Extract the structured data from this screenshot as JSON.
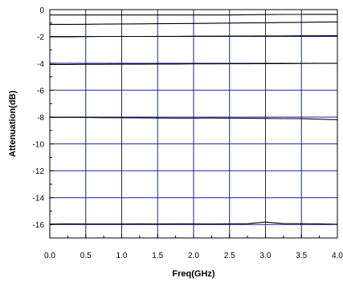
{
  "chart_data": {
    "type": "line",
    "title": "",
    "xlabel": "Freq(GHz)",
    "ylabel": "Attenuation(dB)",
    "xlim": [
      0,
      4.0
    ],
    "ylim": [
      -17,
      0
    ],
    "x_ticks": [
      0.0,
      0.5,
      1.0,
      1.5,
      2.0,
      2.5,
      3.0,
      3.5,
      4.0
    ],
    "x_tick_labels": [
      "0.0",
      "0.5",
      "1.0",
      "1.5",
      "2.0",
      "2.5",
      "3.0",
      "3.5",
      "4.0"
    ],
    "y_ticks": [
      0,
      -2,
      -4,
      -6,
      -8,
      -10,
      -12,
      -14,
      -16
    ],
    "y_tick_labels": [
      "0",
      "-2",
      "-4",
      "-6",
      "-8",
      "-10",
      "-12",
      "-14",
      "-16"
    ],
    "y_minor_ticks": [
      -1,
      -3,
      -5,
      -7,
      -9,
      -11,
      -13,
      -15
    ],
    "grid": true,
    "grid_color": "#1f1f9f",
    "line_color": "#000000",
    "x": [
      0.0,
      0.25,
      0.5,
      0.75,
      1.0,
      1.25,
      1.5,
      1.75,
      2.0,
      2.25,
      2.5,
      2.75,
      3.0,
      3.25,
      3.5,
      3.75,
      4.0
    ],
    "series": [
      {
        "values": [
          -0.4,
          -0.4,
          -0.4,
          -0.4,
          -0.4,
          -0.4,
          -0.4,
          -0.4,
          -0.4,
          -0.4,
          -0.4,
          -0.38,
          -0.37,
          -0.36,
          -0.36,
          -0.35,
          -0.35
        ]
      },
      {
        "values": [
          -1.1,
          -1.1,
          -1.09,
          -1.08,
          -1.07,
          -1.06,
          -1.05,
          -1.04,
          -1.03,
          -1.02,
          -1.0,
          -0.99,
          -0.98,
          -0.96,
          -0.95,
          -0.93,
          -0.92
        ]
      },
      {
        "values": [
          -2.02,
          -2.02,
          -2.01,
          -2.0,
          -2.0,
          -2.0,
          -1.99,
          -1.99,
          -1.98,
          -1.98,
          -1.97,
          -1.97,
          -1.96,
          -1.96,
          -1.95,
          -1.95,
          -1.94
        ]
      },
      {
        "values": [
          -4.08,
          -4.08,
          -4.07,
          -4.07,
          -4.06,
          -4.06,
          -4.05,
          -4.05,
          -4.04,
          -4.04,
          -4.03,
          -4.03,
          -4.02,
          -4.02,
          -4.01,
          -4.0,
          -4.0
        ]
      },
      {
        "values": [
          -8.02,
          -8.02,
          -8.03,
          -8.04,
          -8.05,
          -8.06,
          -8.07,
          -8.08,
          -8.08,
          -8.07,
          -8.08,
          -8.09,
          -8.1,
          -8.11,
          -8.12,
          -8.16,
          -8.2
        ]
      },
      {
        "values": [
          -15.97,
          -15.95,
          -15.96,
          -15.96,
          -15.96,
          -15.95,
          -15.96,
          -15.95,
          -15.95,
          -15.96,
          -15.95,
          -15.94,
          -15.82,
          -15.93,
          -15.94,
          -15.95,
          -15.98
        ]
      }
    ]
  }
}
